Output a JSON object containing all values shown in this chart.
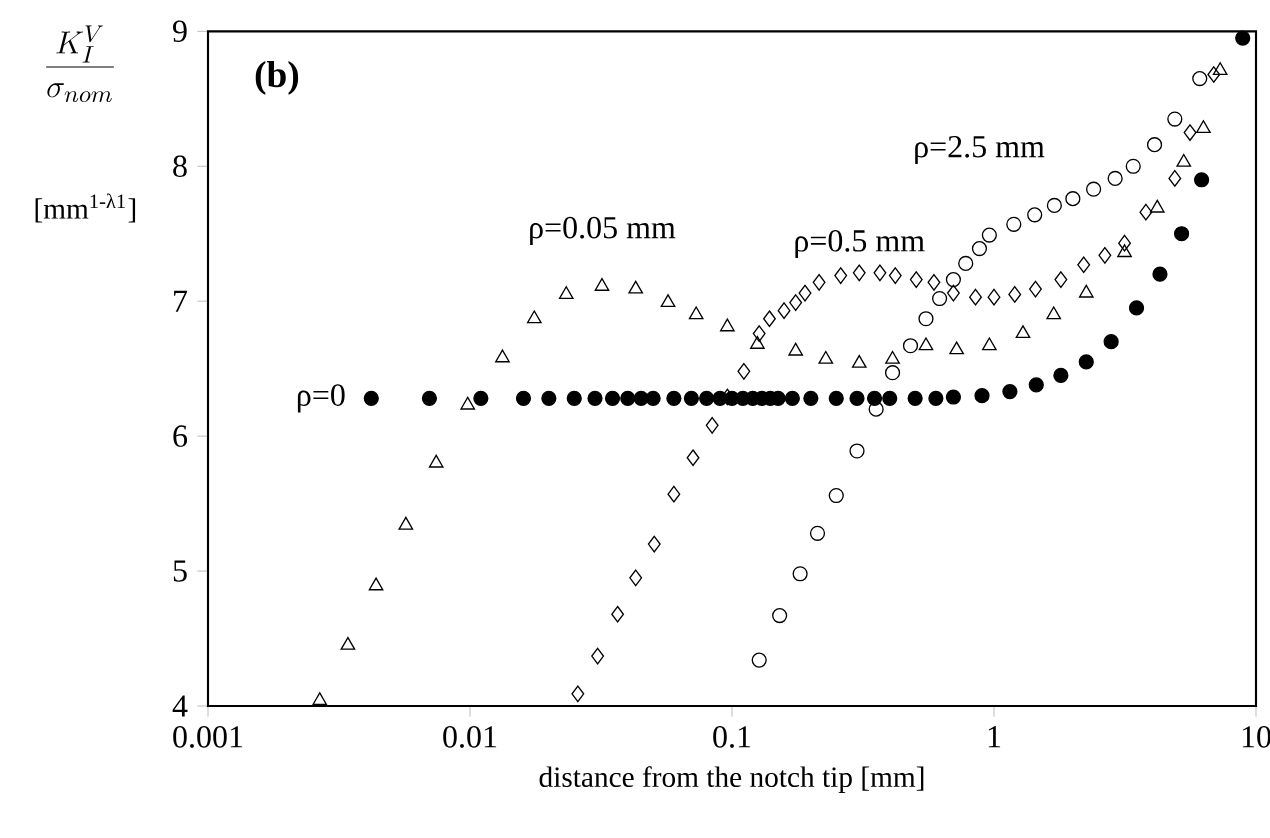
{
  "chart_data": {
    "type": "scatter",
    "xlabel": "distance from the notch tip [mm]",
    "ylabel": "\\frac{K^{V}_{I}}{\\sigma_{nom}}",
    "annotations": [
      "(b)",
      "[mm$^{1-λ1}$]"
    ],
    "log": "x",
    "xlim": [
      0.001,
      10
    ],
    "ylim": [
      4,
      9
    ],
    "xticks": [
      0.001,
      0.01,
      0.1,
      1,
      10
    ],
    "yticks": [
      4,
      5,
      6,
      7,
      8,
      9
    ],
    "grid": false,
    "legend": false,
    "series": [
      {
        "name": "ρ=0",
        "color": "#000000",
        "marker": "circle",
        "x": [
          0.0042,
          0.007,
          0.011,
          0.016,
          0.02,
          0.025,
          0.03,
          0.035,
          0.04,
          0.045,
          0.05,
          0.06,
          0.07,
          0.08,
          0.09,
          0.1,
          0.11,
          0.12,
          0.13,
          0.14,
          0.15,
          0.17,
          0.2,
          0.25,
          0.3,
          0.35,
          0.4,
          0.5,
          0.6,
          0.7,
          0.9,
          1.15,
          1.45,
          1.8,
          2.25,
          2.8,
          3.5,
          4.3,
          5.2,
          6.2,
          8.9
        ],
        "values": [
          6.28,
          6.28,
          6.28,
          6.28,
          6.28,
          6.28,
          6.28,
          6.28,
          6.28,
          6.28,
          6.28,
          6.28,
          6.28,
          6.28,
          6.28,
          6.28,
          6.28,
          6.28,
          6.28,
          6.28,
          6.28,
          6.28,
          6.28,
          6.28,
          6.28,
          6.28,
          6.28,
          6.28,
          6.28,
          6.29,
          6.3,
          6.33,
          6.38,
          6.45,
          6.55,
          6.7,
          6.95,
          7.2,
          7.5,
          7.9,
          8.95
        ]
      },
      {
        "name": "ρ=0.05 mm",
        "color": "#000000",
        "marker": "triangle",
        "x": [
          0.00267,
          0.00342,
          0.00438,
          0.00569,
          0.00743,
          0.0098,
          0.0133,
          0.0176,
          0.0233,
          0.0319,
          0.0429,
          0.057,
          0.073,
          0.096,
          0.125,
          0.175,
          0.228,
          0.306,
          0.41,
          0.55,
          0.72,
          0.96,
          1.29,
          1.69,
          2.25,
          3.15,
          4.2,
          5.3,
          6.3,
          7.3
        ],
        "values": [
          4.04,
          4.45,
          4.89,
          5.34,
          5.8,
          6.23,
          6.58,
          6.87,
          7.05,
          7.11,
          7.09,
          6.99,
          6.9,
          6.81,
          6.68,
          6.63,
          6.57,
          6.54,
          6.57,
          6.67,
          6.64,
          6.67,
          6.76,
          6.9,
          7.06,
          7.36,
          7.69,
          8.03,
          8.28,
          8.71
        ]
      },
      {
        "name": "ρ=0.5 mm",
        "color": "#000000",
        "marker": "diamond",
        "x": [
          0.0258,
          0.0307,
          0.0366,
          0.0429,
          0.0505,
          0.06,
          0.071,
          0.084,
          0.096,
          0.111,
          0.127,
          0.139,
          0.158,
          0.175,
          0.19,
          0.215,
          0.26,
          0.306,
          0.367,
          0.42,
          0.505,
          0.59,
          0.7,
          0.85,
          1.0,
          1.2,
          1.44,
          1.8,
          2.2,
          2.65,
          3.15,
          3.8,
          4.9,
          5.6,
          6.9
        ],
        "values": [
          4.09,
          4.37,
          4.68,
          4.95,
          5.2,
          5.57,
          5.84,
          6.08,
          6.29,
          6.48,
          6.76,
          6.87,
          6.93,
          6.99,
          7.06,
          7.14,
          7.19,
          7.21,
          7.21,
          7.19,
          7.16,
          7.14,
          7.06,
          7.03,
          7.03,
          7.05,
          7.09,
          7.16,
          7.27,
          7.34,
          7.43,
          7.66,
          7.91,
          8.25,
          8.68
        ]
      },
      {
        "name": "ρ=2.5 mm",
        "color": "#000000",
        "marker": "circle",
        "x": [
          0.127,
          0.152,
          0.182,
          0.212,
          0.25,
          0.3,
          0.355,
          0.41,
          0.48,
          0.55,
          0.62,
          0.7,
          0.78,
          0.88,
          0.96,
          1.19,
          1.43,
          1.7,
          2.0,
          2.4,
          2.9,
          3.4,
          4.1,
          4.9,
          6.1
        ],
        "values": [
          4.34,
          4.67,
          4.98,
          5.28,
          5.56,
          5.89,
          6.2,
          6.47,
          6.67,
          6.87,
          7.02,
          7.16,
          7.28,
          7.39,
          7.49,
          7.57,
          7.64,
          7.71,
          7.76,
          7.83,
          7.91,
          8.0,
          8.16,
          8.35,
          8.65
        ]
      }
    ]
  }
}
